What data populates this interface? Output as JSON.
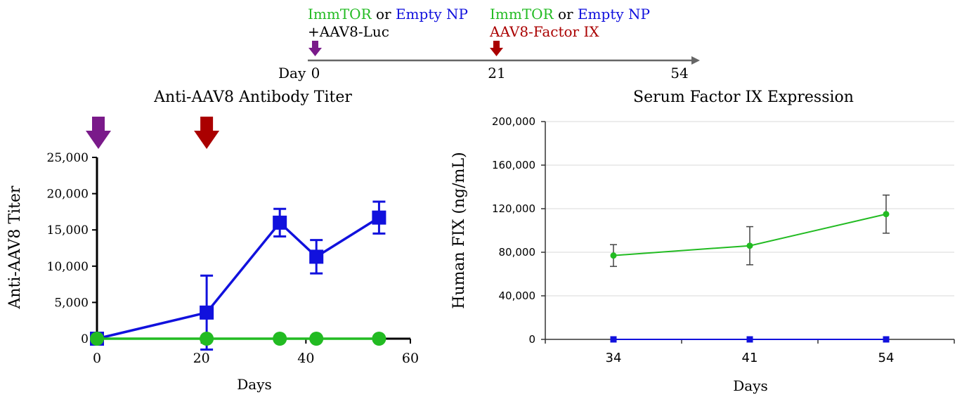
{
  "colors": {
    "immtor": "#22bb22",
    "empty": "#1111dd",
    "day0_arrow": "#7a1a8a",
    "day21_arrow": "#aa0000",
    "axis": "#000000",
    "grid": "#d9d9d9",
    "timeline": "#666666"
  },
  "timeline": {
    "day_label": "Day",
    "events": [
      {
        "day_label": "0",
        "line1a": "ImmTOR",
        "line1b": " or ",
        "line1c": "Empty NP",
        "line2": "+AAV8-Luc",
        "arrow_icon": "down-arrow-icon"
      },
      {
        "day_label": "21",
        "line1a": "ImmTOR",
        "line1b": " or ",
        "line1c": "Empty NP",
        "line2": "AAV8-Factor IX",
        "arrow_icon": "down-arrow-icon"
      }
    ],
    "end_day_label": "54"
  },
  "chart_data": [
    {
      "type": "line",
      "title": "Anti-AAV8 Antibody Titer",
      "xlabel": "Days",
      "ylabel": "Anti-AAV8 Titer",
      "xlim": [
        0,
        60
      ],
      "ylim": [
        0,
        25000
      ],
      "xticks": [
        "0",
        "20",
        "40",
        "60"
      ],
      "xtick_values": [
        0,
        20,
        40,
        60
      ],
      "yticks": [
        "0",
        "5,000",
        "10,000",
        "15,000",
        "20,000",
        "25,000"
      ],
      "ytick_values": [
        0,
        5000,
        10000,
        15000,
        20000,
        25000
      ],
      "grid": false,
      "annotations": [
        {
          "type": "arrow",
          "x": 0,
          "color": "#7a1a8a"
        },
        {
          "type": "arrow",
          "x": 21,
          "color": "#aa0000"
        }
      ],
      "series": [
        {
          "marker": "square",
          "color": "#1111dd",
          "x": [
            0,
            21,
            35,
            42,
            54
          ],
          "y": [
            0,
            3600,
            16000,
            11300,
            16700
          ],
          "err": [
            0,
            5100,
            1900,
            2300,
            2200
          ]
        },
        {
          "marker": "circle",
          "color": "#22bb22",
          "x": [
            0,
            21,
            35,
            42,
            54
          ],
          "y": [
            0,
            0,
            0,
            0,
            0
          ],
          "err": [
            0,
            0,
            0,
            0,
            0
          ]
        }
      ]
    },
    {
      "type": "line",
      "title": "Serum Factor IX Expression",
      "xlabel": "Days",
      "ylabel": "Human FIX (ng/mL)",
      "categories": [
        "34",
        "41",
        "54"
      ],
      "ylim": [
        0,
        200000
      ],
      "yticks": [
        "0",
        "40,000",
        "80,000",
        "120,000",
        "160,000",
        "200,000"
      ],
      "ytick_values": [
        0,
        40000,
        80000,
        120000,
        160000,
        200000
      ],
      "grid": true,
      "series": [
        {
          "marker": "circle",
          "color": "#22bb22",
          "values": [
            77000,
            86000,
            115000
          ],
          "err": [
            10000,
            17500,
            17500
          ]
        },
        {
          "marker": "square",
          "color": "#1111dd",
          "values": [
            0,
            0,
            0
          ],
          "err": [
            0,
            0,
            0
          ]
        }
      ]
    }
  ]
}
